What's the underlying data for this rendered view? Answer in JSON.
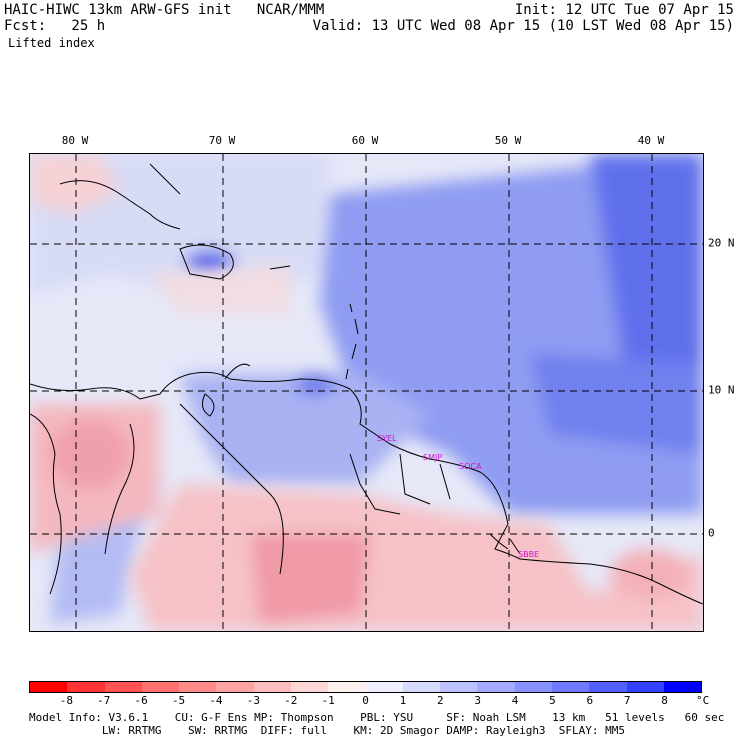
{
  "header": {
    "left_line1": "HAIC-HIWC 13km ARW-GFS init   NCAR/MMM",
    "left_line2": "Fcst:   25 h",
    "field": "Lifted index",
    "right_line1": "Init: 12 UTC Tue 07 Apr 15",
    "right_line2": "Valid: 13 UTC Wed 08 Apr 15 (10 LST Wed 08 Apr 15)"
  },
  "map": {
    "lon_labels": [
      "80 W",
      "70 W",
      "60 W",
      "50 W",
      "40 W"
    ],
    "lat_labels": [
      "20 N",
      "10 N",
      "0"
    ],
    "stations": [
      "SYEL",
      "SMJP",
      "SOCA",
      "SBBE"
    ]
  },
  "colorbar": {
    "colors": [
      "#ff0000",
      "#ff3333",
      "#ff5252",
      "#ff7070",
      "#ff8a8a",
      "#ffa3a3",
      "#ffbcbc",
      "#ffd6d6",
      "#fff0f0",
      "#eef0ff",
      "#d6daff",
      "#bcc2ff",
      "#a3aaff",
      "#8a92ff",
      "#707aff",
      "#5260ff",
      "#3340ff",
      "#0000ff"
    ],
    "ticks": [
      "-8",
      "-7",
      "-6",
      "-5",
      "-4",
      "-3",
      "-2",
      "-1",
      "0",
      "1",
      "2",
      "3",
      "4",
      "5",
      "6",
      "7",
      "8"
    ],
    "unit": "°C"
  },
  "footer": {
    "line1": "Model Info: V3.6.1    CU: G-F Ens MP: Thompson    PBL: YSU     SF: Noah LSM    13 km   51 levels   60 sec",
    "line2": "           LW: RRTMG    SW: RRTMG  DIFF: full    KM: 2D Smagor DAMP: Rayleigh3  SFLAY: MM5"
  }
}
